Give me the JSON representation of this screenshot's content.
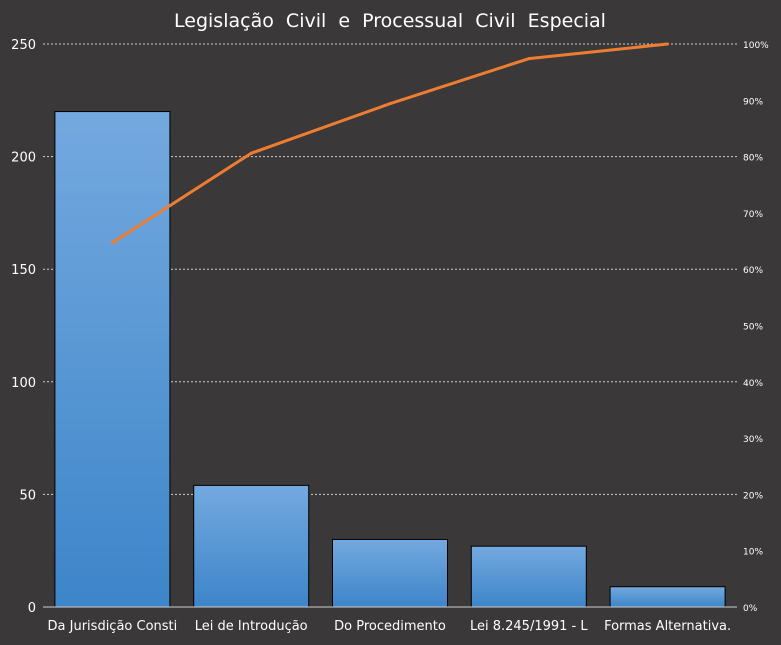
{
  "chart_data": {
    "type": "bar",
    "title": "Legislação  Civil  e  Processual  Civil  Especial",
    "categories": [
      "Da Jurisdição Consti",
      "Lei de Introdução",
      "Do Procedimento",
      "Lei 8.245/1991 - L",
      "Formas  Alternativa."
    ],
    "series": [
      {
        "type": "bar",
        "axis": "left",
        "values": [
          220,
          54,
          30,
          27,
          9
        ]
      },
      {
        "type": "line",
        "axis": "right",
        "values": [
          64.7,
          80.6,
          89.4,
          97.4,
          100
        ]
      }
    ],
    "ylim": [
      0,
      250
    ],
    "yticks": [
      "0",
      "50",
      "100",
      "150",
      "200",
      "250"
    ],
    "y2lim": [
      0,
      100
    ],
    "y2ticks": [
      "0%",
      "10%",
      "20%",
      "30%",
      "40%",
      "50%",
      "60%",
      "70%",
      "80%",
      "90%",
      "100%"
    ],
    "grid": true,
    "legend": "none",
    "colors": {
      "background": "#3a3838",
      "bar_top": "#74a9df",
      "bar_bottom": "#3d85c9",
      "line": "#ed7d31",
      "grid": "#cfcfcf",
      "text": "#ffffff"
    }
  }
}
